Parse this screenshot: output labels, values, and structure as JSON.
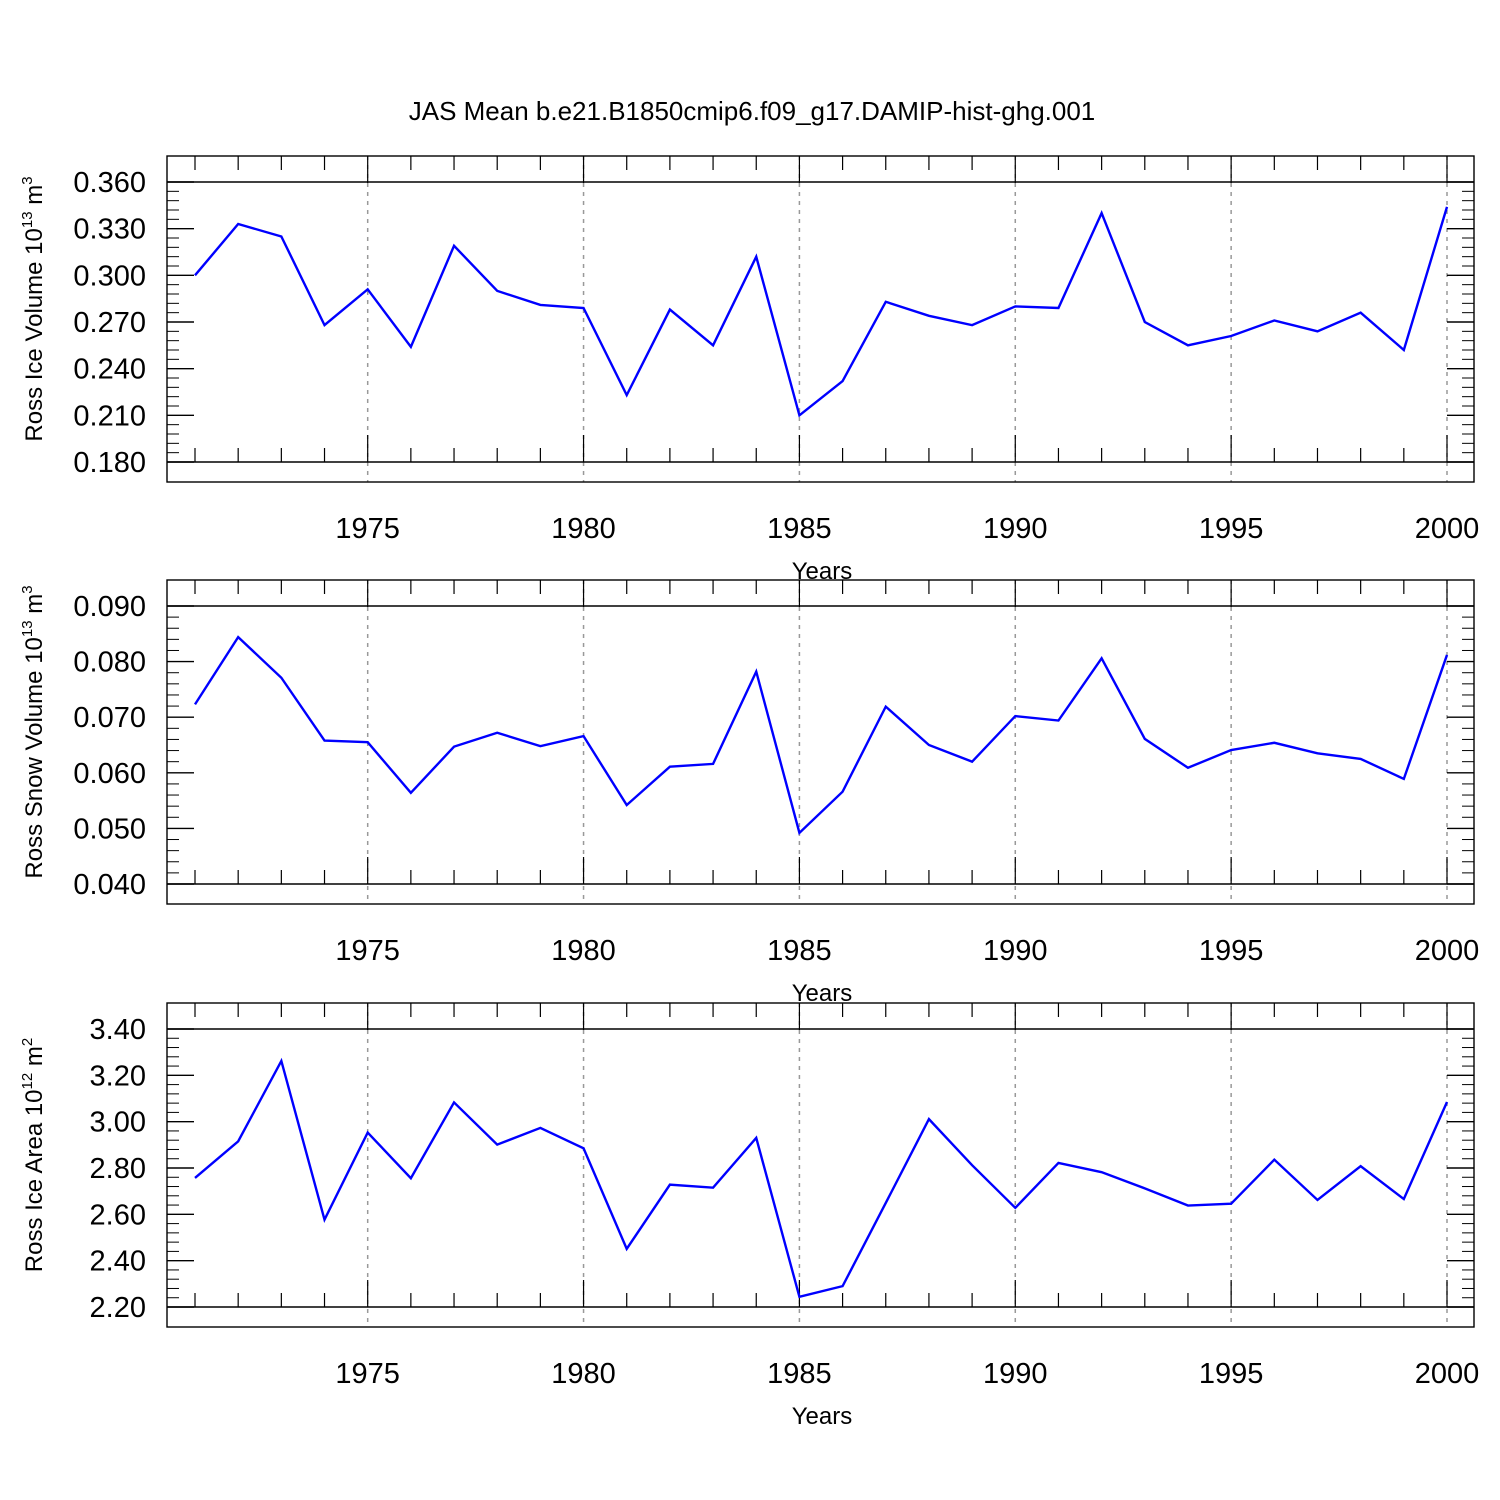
{
  "figure": {
    "title": "JAS Mean b.e21.B1850cmip6.f09_g17.DAMIP-hist-ghg.001",
    "line_color": "#0000ff",
    "grid_color": "#999999"
  },
  "chart_data": [
    {
      "type": "line",
      "title": "",
      "xlabel": "Years",
      "ylabel": "Ross Ice Volume 10",
      "ylabel_exp": "13",
      "ylabel_unit": " m",
      "ylabel_unit_exp": "3",
      "xlim": [
        1971,
        2000
      ],
      "ylim": [
        0.18,
        0.36
      ],
      "y_ticks": [
        0.18,
        0.21,
        0.24,
        0.27,
        0.3,
        0.33,
        0.36
      ],
      "y_tick_labels": [
        "0.180",
        "0.210",
        "0.240",
        "0.270",
        "0.300",
        "0.330",
        "0.360"
      ],
      "x_ticks": [
        1975,
        1980,
        1985,
        1990,
        1995,
        2000
      ],
      "x_tick_labels": [
        "1975",
        "1980",
        "1985",
        "1990",
        "1995",
        "2000"
      ],
      "grid": "vertical dashed at labeled years",
      "x": [
        1971,
        1972,
        1973,
        1974,
        1975,
        1976,
        1977,
        1978,
        1979,
        1980,
        1981,
        1982,
        1983,
        1984,
        1985,
        1986,
        1987,
        1988,
        1989,
        1990,
        1991,
        1992,
        1993,
        1994,
        1995,
        1996,
        1997,
        1998,
        1999,
        2000
      ],
      "series": [
        {
          "values": [
            0.3,
            0.333,
            0.325,
            0.268,
            0.291,
            0.254,
            0.319,
            0.29,
            0.281,
            0.279,
            0.223,
            0.278,
            0.255,
            0.312,
            0.21,
            0.232,
            0.283,
            0.274,
            0.268,
            0.28,
            0.279,
            0.34,
            0.27,
            0.255,
            0.261,
            0.271,
            0.264,
            0.276,
            0.252,
            0.344
          ]
        }
      ]
    },
    {
      "type": "line",
      "title": "",
      "xlabel": "Years",
      "ylabel": "Ross Snow Volume 10",
      "ylabel_exp": "13",
      "ylabel_unit": " m",
      "ylabel_unit_exp": "3",
      "xlim": [
        1971,
        2000
      ],
      "ylim": [
        0.04,
        0.09
      ],
      "y_ticks": [
        0.04,
        0.05,
        0.06,
        0.07,
        0.08,
        0.09
      ],
      "y_tick_labels": [
        "0.040",
        "0.050",
        "0.060",
        "0.070",
        "0.080",
        "0.090"
      ],
      "x_ticks": [
        1975,
        1980,
        1985,
        1990,
        1995,
        2000
      ],
      "x_tick_labels": [
        "1975",
        "1980",
        "1985",
        "1990",
        "1995",
        "2000"
      ],
      "grid": "vertical dashed at labeled years",
      "x": [
        1971,
        1972,
        1973,
        1974,
        1975,
        1976,
        1977,
        1978,
        1979,
        1980,
        1981,
        1982,
        1983,
        1984,
        1985,
        1986,
        1987,
        1988,
        1989,
        1990,
        1991,
        1992,
        1993,
        1994,
        1995,
        1996,
        1997,
        1998,
        1999,
        2000
      ],
      "series": [
        {
          "values": [
            0.0723,
            0.0844,
            0.0771,
            0.0658,
            0.0655,
            0.0564,
            0.0647,
            0.0672,
            0.0648,
            0.0666,
            0.0542,
            0.0611,
            0.0616,
            0.0782,
            0.0492,
            0.0566,
            0.0719,
            0.065,
            0.062,
            0.0702,
            0.0694,
            0.0806,
            0.0661,
            0.0609,
            0.0641,
            0.0654,
            0.0635,
            0.0625,
            0.0589,
            0.0812
          ]
        }
      ]
    },
    {
      "type": "line",
      "title": "",
      "xlabel": "Years",
      "ylabel": "Ross Ice Area 10",
      "ylabel_exp": "12",
      "ylabel_unit": " m",
      "ylabel_unit_exp": "2",
      "xlim": [
        1971,
        2000
      ],
      "ylim": [
        2.2,
        3.4
      ],
      "y_ticks": [
        2.2,
        2.4,
        2.6,
        2.8,
        3.0,
        3.2,
        3.4
      ],
      "y_tick_labels": [
        "2.20",
        "2.40",
        "2.60",
        "2.80",
        "3.00",
        "3.20",
        "3.40"
      ],
      "x_ticks": [
        1975,
        1980,
        1985,
        1990,
        1995,
        2000
      ],
      "x_tick_labels": [
        "1975",
        "1980",
        "1985",
        "1990",
        "1995",
        "2000"
      ],
      "grid": "vertical dashed at labeled years",
      "x": [
        1971,
        1972,
        1973,
        1974,
        1975,
        1976,
        1977,
        1978,
        1979,
        1980,
        1981,
        1982,
        1983,
        1984,
        1985,
        1986,
        1987,
        1988,
        1989,
        1990,
        1991,
        1992,
        1993,
        1994,
        1995,
        1996,
        1997,
        1998,
        1999,
        2000
      ],
      "series": [
        {
          "values": [
            2.757,
            2.915,
            3.262,
            2.577,
            2.953,
            2.756,
            3.083,
            2.901,
            2.973,
            2.885,
            2.451,
            2.728,
            2.715,
            2.93,
            2.244,
            2.29,
            2.649,
            3.011,
            2.812,
            2.628,
            2.822,
            2.782,
            2.712,
            2.638,
            2.646,
            2.836,
            2.662,
            2.808,
            2.666,
            3.085
          ]
        }
      ]
    }
  ]
}
